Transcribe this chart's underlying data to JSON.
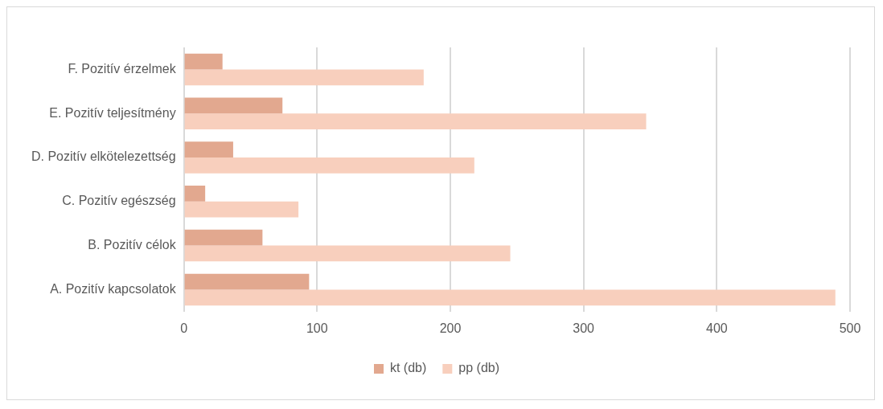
{
  "chart_data": {
    "type": "bar",
    "orientation": "horizontal",
    "categories": [
      "F. Pozitív érzelmek",
      "E. Pozitív teljesítmény",
      "D. Pozitív elkötelezettség",
      "C. Pozitív egészség",
      "B. Pozitív célok",
      "A. Pozitív kapcsolatok"
    ],
    "series": [
      {
        "name": "kt (db)",
        "color": "#e2a88f",
        "values": [
          29,
          74,
          37,
          16,
          59,
          94
        ]
      },
      {
        "name": "pp (db)",
        "color": "#f8cfbd",
        "values": [
          180,
          347,
          218,
          86,
          245,
          489
        ]
      }
    ],
    "xlim": [
      0,
      500
    ],
    "xticks": [
      0,
      100,
      200,
      300,
      400,
      500
    ],
    "grid": "x",
    "legend": "bottom"
  }
}
